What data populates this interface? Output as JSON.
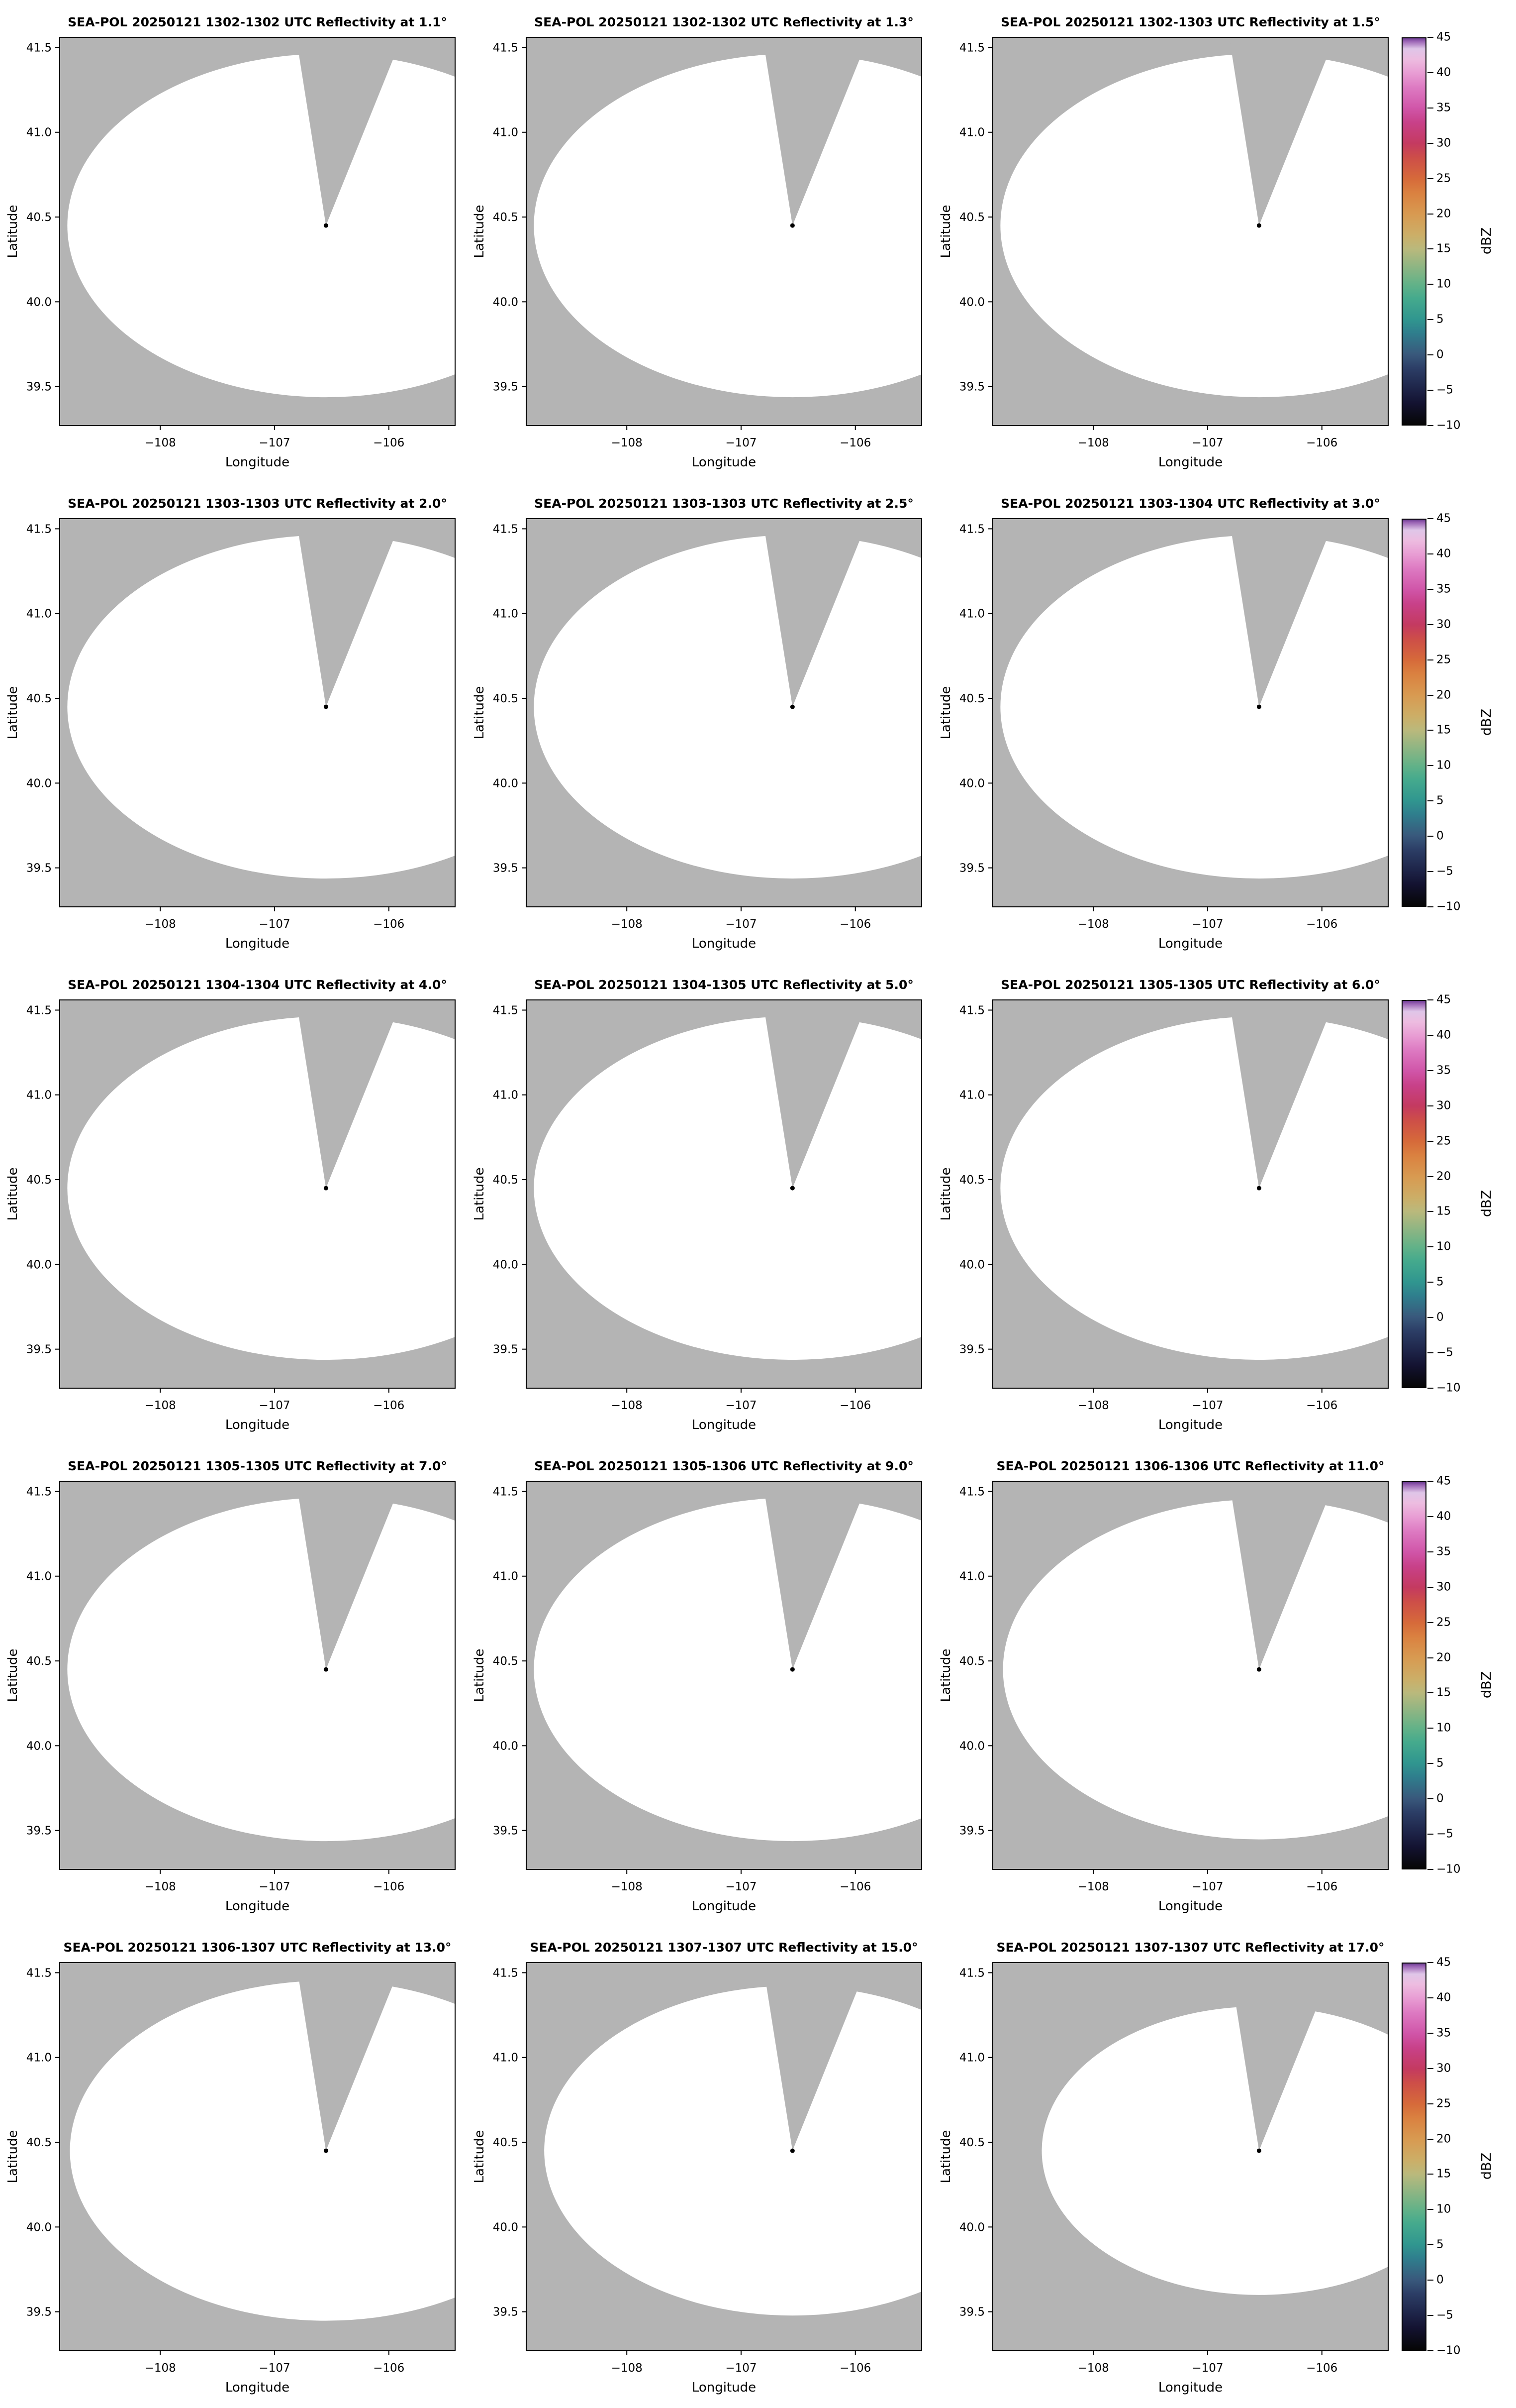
{
  "page": {
    "background": "#ffffff"
  },
  "chart_data": {
    "type": "heatmap",
    "figure_kind": "radar_ppi_grid",
    "instrument": "SEA-POL",
    "date": "20250121",
    "grid": {
      "rows": 5,
      "cols": 3
    },
    "xlabel": "Longitude",
    "ylabel": "Latitude",
    "xlim": [
      -108.88,
      -105.42
    ],
    "ylim": [
      39.27,
      41.56
    ],
    "xticks": [
      -108,
      -107,
      -106
    ],
    "xtick_labels": [
      "−108",
      "−107",
      "−106"
    ],
    "yticks": [
      39.5,
      40.0,
      40.5,
      41.0,
      41.5
    ],
    "ytick_labels": [
      "39.5",
      "40.0",
      "40.5",
      "41.0",
      "41.5"
    ],
    "radar_location": {
      "lon": -106.55,
      "lat": 40.45
    },
    "no_data_color": "#b4b4b4",
    "echo_free_color": "#ffffff",
    "marker_color": "#000000",
    "no_data_sector": {
      "az_from_deg": -9,
      "az_to_deg": 22
    },
    "panel_note": "All 15 PPI panels show no reflectivity echoes: a white echo-free radar coverage circle with a gray no-data wedge extending north from the radar marker and gray outside the maximum range.",
    "panels": [
      {
        "title": "SEA-POL 20250121 1302-1302 UTC Reflectivity at 1.1°",
        "elevation_deg": 1.1,
        "time_utc": "1302-1302",
        "coverage_scale": 1.0
      },
      {
        "title": "SEA-POL 20250121 1302-1302 UTC Reflectivity at 1.3°",
        "elevation_deg": 1.3,
        "time_utc": "1302-1302",
        "coverage_scale": 1.0
      },
      {
        "title": "SEA-POL 20250121 1302-1303 UTC Reflectivity at 1.5°",
        "elevation_deg": 1.5,
        "time_utc": "1302-1303",
        "coverage_scale": 1.0
      },
      {
        "title": "SEA-POL 20250121 1303-1303 UTC Reflectivity at 2.0°",
        "elevation_deg": 2.0,
        "time_utc": "1303-1303",
        "coverage_scale": 1.0
      },
      {
        "title": "SEA-POL 20250121 1303-1303 UTC Reflectivity at 2.5°",
        "elevation_deg": 2.5,
        "time_utc": "1303-1303",
        "coverage_scale": 1.0
      },
      {
        "title": "SEA-POL 20250121 1303-1304 UTC Reflectivity at 3.0°",
        "elevation_deg": 3.0,
        "time_utc": "1303-1304",
        "coverage_scale": 1.0
      },
      {
        "title": "SEA-POL 20250121 1304-1304 UTC Reflectivity at 4.0°",
        "elevation_deg": 4.0,
        "time_utc": "1304-1304",
        "coverage_scale": 1.0
      },
      {
        "title": "SEA-POL 20250121 1304-1305 UTC Reflectivity at 5.0°",
        "elevation_deg": 5.0,
        "time_utc": "1304-1305",
        "coverage_scale": 1.0
      },
      {
        "title": "SEA-POL 20250121 1305-1305 UTC Reflectivity at 6.0°",
        "elevation_deg": 6.0,
        "time_utc": "1305-1305",
        "coverage_scale": 1.0
      },
      {
        "title": "SEA-POL 20250121 1305-1305 UTC Reflectivity at 7.0°",
        "elevation_deg": 7.0,
        "time_utc": "1305-1305",
        "coverage_scale": 1.0
      },
      {
        "title": "SEA-POL 20250121 1305-1306 UTC Reflectivity at 9.0°",
        "elevation_deg": 9.0,
        "time_utc": "1305-1306",
        "coverage_scale": 1.0
      },
      {
        "title": "SEA-POL 20250121 1306-1306 UTC Reflectivity at 11.0°",
        "elevation_deg": 11.0,
        "time_utc": "1306-1306",
        "coverage_scale": 0.99
      },
      {
        "title": "SEA-POL 20250121 1306-1307 UTC Reflectivity at 13.0°",
        "elevation_deg": 13.0,
        "time_utc": "1306-1307",
        "coverage_scale": 0.99
      },
      {
        "title": "SEA-POL 20250121 1307-1307 UTC Reflectivity at 15.0°",
        "elevation_deg": 15.0,
        "time_utc": "1307-1307",
        "coverage_scale": 0.96
      },
      {
        "title": "SEA-POL 20250121 1307-1307 UTC Reflectivity at 17.0°",
        "elevation_deg": 17.0,
        "time_utc": "1307-1307",
        "coverage_scale": 0.84
      }
    ],
    "colorbar": {
      "label": "dBZ",
      "min": -10,
      "max": 45,
      "ticks": [
        45,
        40,
        35,
        30,
        25,
        20,
        15,
        10,
        5,
        0,
        -5,
        -10
      ],
      "tick_labels": [
        "45",
        "40",
        "35",
        "30",
        "25",
        "20",
        "15",
        "10",
        "5",
        "0",
        "−5",
        "−10"
      ],
      "stops": [
        {
          "v": -10,
          "c": "#060606"
        },
        {
          "v": -7,
          "c": "#131230"
        },
        {
          "v": -5,
          "c": "#1d2347"
        },
        {
          "v": -2,
          "c": "#2c3e66"
        },
        {
          "v": 0,
          "c": "#39597c"
        },
        {
          "v": 3,
          "c": "#2f7e8d"
        },
        {
          "v": 5,
          "c": "#30968f"
        },
        {
          "v": 8,
          "c": "#45aa8d"
        },
        {
          "v": 10,
          "c": "#63b288"
        },
        {
          "v": 13,
          "c": "#97b682"
        },
        {
          "v": 15,
          "c": "#bab97c"
        },
        {
          "v": 17,
          "c": "#ccae67"
        },
        {
          "v": 20,
          "c": "#d89a51"
        },
        {
          "v": 23,
          "c": "#da8140"
        },
        {
          "v": 25,
          "c": "#d66a3a"
        },
        {
          "v": 28,
          "c": "#cd4e48"
        },
        {
          "v": 30,
          "c": "#c43a60"
        },
        {
          "v": 33,
          "c": "#c84189"
        },
        {
          "v": 35,
          "c": "#d055a8"
        },
        {
          "v": 38,
          "c": "#dd7ac2"
        },
        {
          "v": 40,
          "c": "#e89cd3"
        },
        {
          "v": 42,
          "c": "#edbce0"
        },
        {
          "v": 43.5,
          "c": "#dfc6e8"
        },
        {
          "v": 44.6,
          "c": "#9a63b4"
        },
        {
          "v": 45,
          "c": "#6f3f95"
        }
      ]
    }
  }
}
